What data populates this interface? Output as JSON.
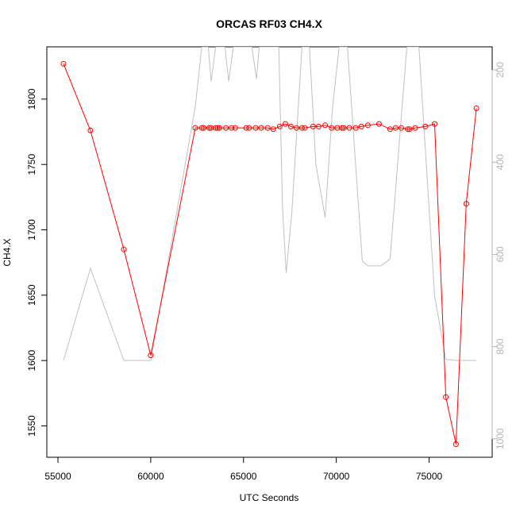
{
  "chart_data": {
    "type": "line",
    "title": "ORCAS RF03 CH4.X",
    "xlabel": "UTC Seconds",
    "ylabel": "CH4.X",
    "xlim": [
      54400,
      78400
    ],
    "ylim": [
      1526,
      1840
    ],
    "y2lim": [
      1040,
      150
    ],
    "x_ticks": [
      55000,
      60000,
      65000,
      70000,
      75000
    ],
    "x_tick_labels": [
      "55000",
      "60000",
      "65000",
      "70000",
      "75000"
    ],
    "y_ticks": [
      1550,
      1600,
      1650,
      1700,
      1750,
      1800
    ],
    "y_tick_labels": [
      "1550",
      "1600",
      "1650",
      "1700",
      "1750",
      "1800"
    ],
    "y2_ticks": [
      200,
      400,
      600,
      800,
      1000
    ],
    "y2_tick_labels": [
      "200",
      "400",
      "600",
      "800",
      "1000"
    ],
    "grid": false,
    "series": [
      {
        "axis": "left",
        "color": "#ff0000",
        "style": "line+open-circles",
        "points": [
          [
            55300,
            1827
          ],
          [
            56750,
            1776
          ],
          [
            58550,
            1685
          ],
          [
            60000,
            1604
          ],
          [
            62400,
            1778
          ],
          [
            62750,
            1778
          ],
          [
            62850,
            1778
          ],
          [
            63150,
            1778
          ],
          [
            63250,
            1778
          ],
          [
            63500,
            1778
          ],
          [
            63600,
            1778
          ],
          [
            63700,
            1778
          ],
          [
            64050,
            1778
          ],
          [
            64350,
            1778
          ],
          [
            64550,
            1778
          ],
          [
            65150,
            1778
          ],
          [
            65300,
            1778
          ],
          [
            65650,
            1778
          ],
          [
            65950,
            1778
          ],
          [
            66300,
            1778
          ],
          [
            66600,
            1777
          ],
          [
            66950,
            1779
          ],
          [
            67250,
            1781
          ],
          [
            67550,
            1779
          ],
          [
            67850,
            1778
          ],
          [
            68150,
            1778
          ],
          [
            68300,
            1778
          ],
          [
            68750,
            1779
          ],
          [
            69050,
            1779
          ],
          [
            69400,
            1780
          ],
          [
            69750,
            1778
          ],
          [
            70050,
            1778
          ],
          [
            70300,
            1778
          ],
          [
            70400,
            1778
          ],
          [
            70700,
            1778
          ],
          [
            71050,
            1778
          ],
          [
            71350,
            1779
          ],
          [
            71700,
            1780
          ],
          [
            72300,
            1781
          ],
          [
            72900,
            1777
          ],
          [
            73200,
            1778
          ],
          [
            73500,
            1778
          ],
          [
            73850,
            1777
          ],
          [
            73950,
            1777
          ],
          [
            74250,
            1778
          ],
          [
            74800,
            1779
          ],
          [
            75300,
            1781
          ],
          [
            75900,
            1572
          ],
          [
            76450,
            1536
          ],
          [
            77000,
            1720
          ],
          [
            77550,
            1793
          ]
        ]
      },
      {
        "axis": "right",
        "color": "#c0c0c0",
        "style": "line",
        "points": [
          [
            55300,
            830
          ],
          [
            56750,
            630
          ],
          [
            58550,
            830
          ],
          [
            60000,
            830
          ],
          [
            62400,
            280
          ],
          [
            62750,
            150
          ],
          [
            63100,
            150
          ],
          [
            63250,
            225
          ],
          [
            63500,
            150
          ],
          [
            64000,
            150
          ],
          [
            64200,
            225
          ],
          [
            64450,
            150
          ],
          [
            65450,
            150
          ],
          [
            65700,
            220
          ],
          [
            65850,
            150
          ],
          [
            66900,
            150
          ],
          [
            67100,
            500
          ],
          [
            67300,
            640
          ],
          [
            67600,
            510
          ],
          [
            68150,
            150
          ],
          [
            68550,
            150
          ],
          [
            68900,
            405
          ],
          [
            69400,
            520
          ],
          [
            69800,
            280
          ],
          [
            70150,
            150
          ],
          [
            70600,
            150
          ],
          [
            71400,
            615
          ],
          [
            71700,
            625
          ],
          [
            72400,
            625
          ],
          [
            72900,
            610
          ],
          [
            73800,
            150
          ],
          [
            74450,
            150
          ],
          [
            75300,
            690
          ],
          [
            75900,
            828
          ],
          [
            76450,
            830
          ],
          [
            77000,
            830
          ],
          [
            77550,
            830
          ]
        ]
      }
    ]
  }
}
